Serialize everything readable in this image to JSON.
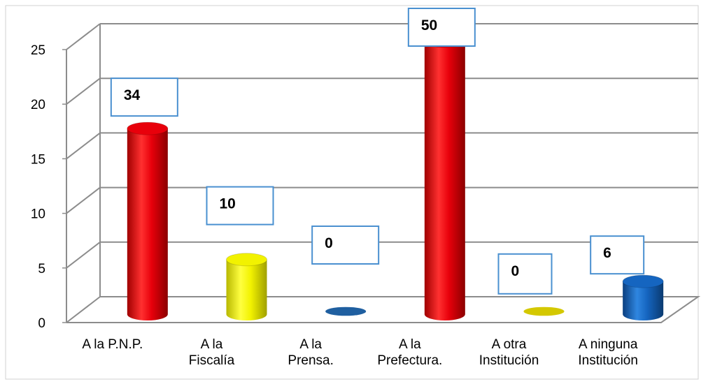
{
  "chart_data": {
    "type": "bar",
    "style": "3d-cylinder",
    "categories": [
      [
        "A la P.N.P."
      ],
      [
        "A la",
        "Fiscalía"
      ],
      [
        "A la",
        "Prensa."
      ],
      [
        "A la",
        "Prefectura."
      ],
      [
        "A otra",
        "Institución"
      ],
      [
        "A ninguna",
        "Institución"
      ]
    ],
    "values": [
      17,
      5,
      0,
      25,
      0,
      3
    ],
    "data_labels": [
      "34",
      "10",
      "0",
      "50",
      "0",
      "6"
    ],
    "bar_colors": [
      "#e8000b",
      "#f2f200",
      "#1f5fa0",
      "#e8000b",
      "#d4c800",
      "#1565c0"
    ],
    "ylim": [
      0,
      25
    ],
    "yticks": [
      0,
      5,
      10,
      15,
      20,
      25
    ],
    "grid": true,
    "title": "",
    "xlabel": "",
    "ylabel": ""
  }
}
